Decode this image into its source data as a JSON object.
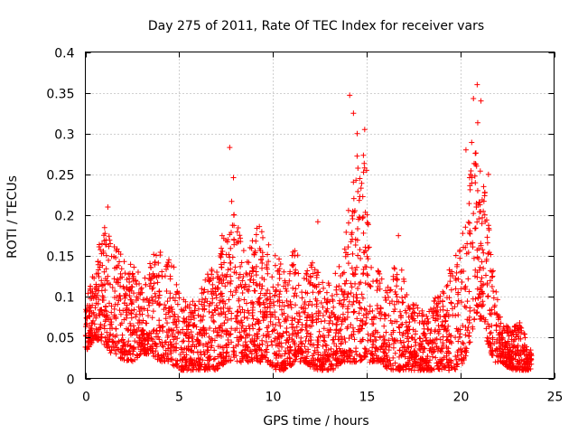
{
  "chart_data": {
    "type": "scatter",
    "title": "Day 275 of 2011, Rate Of TEC Index for receiver vars",
    "xlabel": "GPS time / hours",
    "ylabel": "ROTI / TECUs",
    "xlim": [
      0,
      25
    ],
    "ylim": [
      0,
      0.4
    ],
    "xticks": [
      0,
      5,
      10,
      15,
      20,
      25
    ],
    "yticks": [
      0,
      0.05,
      0.1,
      0.15,
      0.2,
      0.25,
      0.3,
      0.35,
      0.4
    ],
    "xtick_labels": [
      "0",
      "5",
      "10",
      "15",
      "20",
      "25"
    ],
    "ytick_labels": [
      "0",
      "0.05",
      "0.1",
      "0.15",
      "0.2",
      "0.25",
      "0.3",
      "0.35",
      "0.4"
    ],
    "grid": true,
    "marker": "plus",
    "color": "#ff0000",
    "envelope": {
      "hours": [
        0,
        0.5,
        1,
        1.3,
        1.7,
        2,
        2.5,
        3,
        3.5,
        4,
        4.5,
        5,
        5.5,
        6,
        6.5,
        7,
        7.5,
        7.8,
        8.2,
        8.7,
        9.2,
        9.7,
        10.2,
        10.7,
        11.2,
        11.7,
        12.2,
        12.7,
        13.2,
        13.7,
        14.1,
        14.5,
        14.8,
        15.2,
        15.7,
        16.2,
        16.7,
        17.2,
        17.7,
        18.2,
        18.7,
        19.2,
        19.7,
        20.2,
        20.6,
        20.9,
        21.2,
        21.5,
        21.8,
        22.2,
        22.7,
        23.2,
        23.7
      ],
      "upper": [
        0.09,
        0.14,
        0.19,
        0.18,
        0.16,
        0.15,
        0.14,
        0.13,
        0.15,
        0.16,
        0.15,
        0.12,
        0.09,
        0.1,
        0.13,
        0.16,
        0.2,
        0.22,
        0.18,
        0.17,
        0.19,
        0.17,
        0.15,
        0.14,
        0.16,
        0.15,
        0.14,
        0.12,
        0.13,
        0.15,
        0.22,
        0.28,
        0.3,
        0.15,
        0.13,
        0.12,
        0.15,
        0.1,
        0.09,
        0.08,
        0.1,
        0.12,
        0.15,
        0.19,
        0.29,
        0.32,
        0.25,
        0.2,
        0.12,
        0.07,
        0.06,
        0.07,
        0.04
      ],
      "lower": [
        0.03,
        0.05,
        0.04,
        0.03,
        0.03,
        0.02,
        0.02,
        0.03,
        0.03,
        0.02,
        0.02,
        0.01,
        0.01,
        0.01,
        0.01,
        0.01,
        0.02,
        0.02,
        0.02,
        0.02,
        0.02,
        0.02,
        0.01,
        0.01,
        0.02,
        0.02,
        0.01,
        0.01,
        0.01,
        0.02,
        0.02,
        0.02,
        0.02,
        0.02,
        0.02,
        0.01,
        0.01,
        0.01,
        0.01,
        0.01,
        0.01,
        0.01,
        0.01,
        0.02,
        0.05,
        0.08,
        0.06,
        0.04,
        0.02,
        0.02,
        0.01,
        0.01,
        0.01
      ]
    },
    "points_per_hour": 140,
    "time_range": [
      0,
      23.8
    ],
    "notable_points": [
      {
        "x": 7.7,
        "y": 0.283
      },
      {
        "x": 7.9,
        "y": 0.246
      },
      {
        "x": 14.1,
        "y": 0.347
      },
      {
        "x": 14.3,
        "y": 0.325
      },
      {
        "x": 14.9,
        "y": 0.305
      },
      {
        "x": 14.5,
        "y": 0.3
      },
      {
        "x": 15.0,
        "y": 0.255
      },
      {
        "x": 16.7,
        "y": 0.175
      },
      {
        "x": 20.9,
        "y": 0.36
      },
      {
        "x": 21.1,
        "y": 0.34
      },
      {
        "x": 20.7,
        "y": 0.343
      },
      {
        "x": 20.3,
        "y": 0.28
      },
      {
        "x": 21.5,
        "y": 0.25
      },
      {
        "x": 1.2,
        "y": 0.21
      },
      {
        "x": 12.4,
        "y": 0.192
      }
    ]
  }
}
